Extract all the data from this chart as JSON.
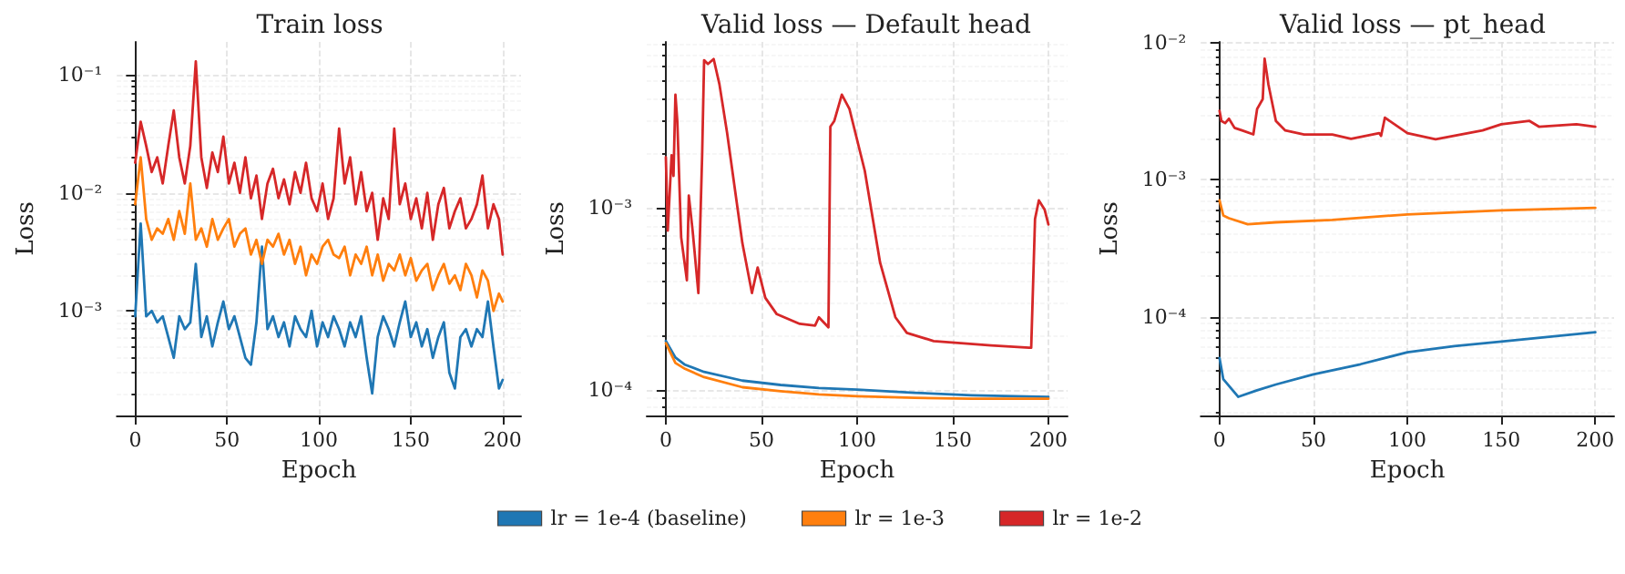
{
  "chart_data": [
    {
      "type": "line",
      "title": "Train loss",
      "xlabel": "Epoch",
      "ylabel": "Loss",
      "log": "y",
      "grid": true,
      "legend": false,
      "marker": "none",
      "line_style": "solid",
      "x": [
        0,
        3,
        6,
        9,
        12,
        15,
        18,
        21,
        24,
        27,
        30,
        33,
        36,
        39,
        42,
        45,
        48,
        51,
        54,
        57,
        60,
        63,
        66,
        69,
        72,
        75,
        78,
        81,
        84,
        87,
        90,
        93,
        96,
        99,
        102,
        105,
        108,
        111,
        114,
        117,
        120,
        123,
        126,
        129,
        132,
        135,
        138,
        141,
        144,
        147,
        150,
        153,
        156,
        159,
        162,
        165,
        168,
        171,
        174,
        177,
        180,
        183,
        186,
        189,
        192,
        195,
        198,
        200
      ],
      "xlim": [
        -10,
        210
      ],
      "xticks": [
        0,
        50,
        100,
        150,
        200
      ],
      "ylim": [
        0.00013,
        0.19
      ],
      "yticks": [
        {
          "value": 0.001,
          "label": "10⁻³"
        },
        {
          "value": 0.01,
          "label": "10⁻²"
        },
        {
          "value": 0.1,
          "label": "10⁻¹"
        }
      ],
      "series": [
        {
          "color": "#1f77b4",
          "values": [
            0.0009,
            0.0055,
            0.0009,
            0.001,
            0.0008,
            0.0009,
            0.0006,
            0.0004,
            0.0009,
            0.0007,
            0.0008,
            0.0025,
            0.0006,
            0.0009,
            0.0005,
            0.0008,
            0.0012,
            0.0007,
            0.0009,
            0.0006,
            0.0004,
            0.00035,
            0.0008,
            0.0035,
            0.0007,
            0.0009,
            0.0006,
            0.0008,
            0.0005,
            0.0009,
            0.0007,
            0.0006,
            0.001,
            0.0005,
            0.0008,
            0.0006,
            0.0009,
            0.0007,
            0.0005,
            0.0008,
            0.0006,
            0.0009,
            0.0004,
            0.0002,
            0.0006,
            0.0009,
            0.0007,
            0.0005,
            0.0008,
            0.0012,
            0.0006,
            0.0008,
            0.0005,
            0.0007,
            0.0004,
            0.0006,
            0.0008,
            0.0003,
            0.00022,
            0.0006,
            0.0007,
            0.0005,
            0.0007,
            0.0006,
            0.0012,
            0.0005,
            0.00022,
            0.00026
          ]
        },
        {
          "color": "#ff7f0e",
          "values": [
            0.008,
            0.02,
            0.006,
            0.004,
            0.005,
            0.0045,
            0.006,
            0.004,
            0.007,
            0.0045,
            0.012,
            0.004,
            0.005,
            0.0035,
            0.006,
            0.004,
            0.005,
            0.006,
            0.0035,
            0.0045,
            0.005,
            0.003,
            0.004,
            0.0025,
            0.004,
            0.0035,
            0.0045,
            0.003,
            0.004,
            0.0025,
            0.0035,
            0.002,
            0.003,
            0.0025,
            0.0035,
            0.004,
            0.003,
            0.0028,
            0.0035,
            0.002,
            0.003,
            0.0025,
            0.0035,
            0.002,
            0.003,
            0.0018,
            0.0025,
            0.0022,
            0.003,
            0.002,
            0.0028,
            0.0018,
            0.0022,
            0.0025,
            0.0015,
            0.002,
            0.0025,
            0.0017,
            0.002,
            0.0015,
            0.0025,
            0.002,
            0.0013,
            0.0022,
            0.0018,
            0.001,
            0.0014,
            0.0012
          ]
        },
        {
          "color": "#d62728",
          "values": [
            0.018,
            0.04,
            0.025,
            0.015,
            0.02,
            0.012,
            0.025,
            0.05,
            0.02,
            0.012,
            0.025,
            0.13,
            0.02,
            0.011,
            0.022,
            0.015,
            0.03,
            0.012,
            0.018,
            0.01,
            0.02,
            0.009,
            0.014,
            0.006,
            0.012,
            0.016,
            0.009,
            0.013,
            0.008,
            0.015,
            0.01,
            0.018,
            0.009,
            0.007,
            0.012,
            0.006,
            0.009,
            0.035,
            0.012,
            0.02,
            0.008,
            0.015,
            0.007,
            0.01,
            0.004,
            0.009,
            0.006,
            0.035,
            0.008,
            0.012,
            0.006,
            0.009,
            0.005,
            0.01,
            0.004,
            0.008,
            0.011,
            0.005,
            0.007,
            0.009,
            0.005,
            0.006,
            0.008,
            0.014,
            0.005,
            0.008,
            0.006,
            0.003
          ]
        }
      ]
    },
    {
      "type": "line",
      "title": "Valid loss — Default head",
      "xlabel": "Epoch",
      "ylabel": "Loss",
      "log": "y",
      "grid": true,
      "legend": "bottom",
      "marker": "none",
      "line_style": "solid",
      "xlim": [
        -10,
        210
      ],
      "xticks": [
        0,
        50,
        100,
        150,
        200
      ],
      "ylim": [
        7.2e-05,
        0.0082
      ],
      "yticks": [
        {
          "value": 0.0001,
          "label": "10⁻⁴"
        },
        {
          "value": 0.001,
          "label": "10⁻³"
        }
      ],
      "series": [
        {
          "name": "lr = 1e-4 (baseline)",
          "color": "#1f77b4",
          "x": [
            0,
            5,
            10,
            20,
            40,
            60,
            80,
            100,
            130,
            160,
            200
          ],
          "values": [
            0.000185,
            0.00015,
            0.000137,
            0.000125,
            0.000112,
            0.000106,
            0.000102,
            0.0001,
            9.6e-05,
            9.3e-05,
            9.1e-05
          ]
        },
        {
          "name": "lr = 1e-3",
          "color": "#ff7f0e",
          "x": [
            0,
            5,
            10,
            20,
            40,
            60,
            80,
            100,
            130,
            160,
            200
          ],
          "values": [
            0.00018,
            0.00014,
            0.00013,
            0.000117,
            0.000103,
            9.8e-05,
            9.4e-05,
            9.2e-05,
            9e-05,
            8.9e-05,
            8.9e-05
          ]
        },
        {
          "name": "lr = 1e-2",
          "color": "#d62728",
          "x": [
            0,
            1,
            3,
            4,
            5,
            6,
            8,
            11,
            12,
            14,
            17,
            19,
            20,
            22,
            25,
            28,
            32,
            40,
            45,
            48,
            52,
            58,
            70,
            78,
            80,
            85,
            86,
            88,
            92,
            96,
            104,
            112,
            120,
            126,
            140,
            170,
            190,
            191,
            193,
            195,
            198,
            200
          ],
          "values": [
            0.0019,
            0.00075,
            0.00195,
            0.0015,
            0.0042,
            0.003,
            0.00069,
            0.0004,
            0.00117,
            0.00075,
            0.00034,
            0.002,
            0.0065,
            0.0062,
            0.0066,
            0.0048,
            0.0026,
            0.00064,
            0.00034,
            0.00047,
            0.00032,
            0.00026,
            0.00023,
            0.000225,
            0.00025,
            0.00022,
            0.0028,
            0.003,
            0.0042,
            0.0035,
            0.0016,
            0.0005,
            0.00025,
            0.000205,
            0.000185,
            0.000175,
            0.00017,
            0.00017,
            0.00087,
            0.0011,
            0.00098,
            0.00081
          ]
        }
      ]
    },
    {
      "type": "line",
      "title": "Valid loss — pt_head",
      "xlabel": "Epoch",
      "ylabel": "Loss",
      "log": "y",
      "grid": true,
      "legend": false,
      "marker": "none",
      "line_style": "solid",
      "xlim": [
        -10,
        210
      ],
      "xticks": [
        0,
        50,
        100,
        150,
        200
      ],
      "ylim": [
        1.9e-05,
        0.0102
      ],
      "yticks": [
        {
          "value": 0.0001,
          "label": "10⁻⁴"
        },
        {
          "value": 0.001,
          "label": "10⁻³"
        },
        {
          "value": 0.01,
          "label": "10⁻²"
        }
      ],
      "series": [
        {
          "color": "#1f77b4",
          "x": [
            0,
            2,
            10,
            20,
            30,
            50,
            75,
            100,
            125,
            150,
            200
          ],
          "values": [
            5e-05,
            3.5e-05,
            2.6e-05,
            2.9e-05,
            3.2e-05,
            3.8e-05,
            4.5e-05,
            5.5e-05,
            6.1e-05,
            6.6e-05,
            7.7e-05
          ]
        },
        {
          "color": "#ff7f0e",
          "x": [
            0,
            2,
            5,
            15,
            30,
            60,
            100,
            150,
            200
          ],
          "values": [
            0.00071,
            0.00055,
            0.000525,
            0.000475,
            0.00049,
            0.00051,
            0.00056,
            0.0006,
            0.000625
          ]
        },
        {
          "color": "#d62728",
          "x": [
            0,
            1,
            3,
            5,
            8,
            12,
            18,
            20,
            23,
            24,
            26,
            30,
            35,
            45,
            60,
            70,
            85,
            86,
            88,
            100,
            115,
            140,
            150,
            165,
            170,
            190,
            200
          ],
          "values": [
            0.0032,
            0.0027,
            0.0026,
            0.0028,
            0.0024,
            0.0023,
            0.00215,
            0.0033,
            0.0039,
            0.0077,
            0.005,
            0.0027,
            0.0023,
            0.00215,
            0.00215,
            0.002,
            0.0022,
            0.0021,
            0.00285,
            0.0022,
            0.00198,
            0.0023,
            0.00255,
            0.0027,
            0.00245,
            0.00255,
            0.00245
          ]
        }
      ]
    }
  ]
}
